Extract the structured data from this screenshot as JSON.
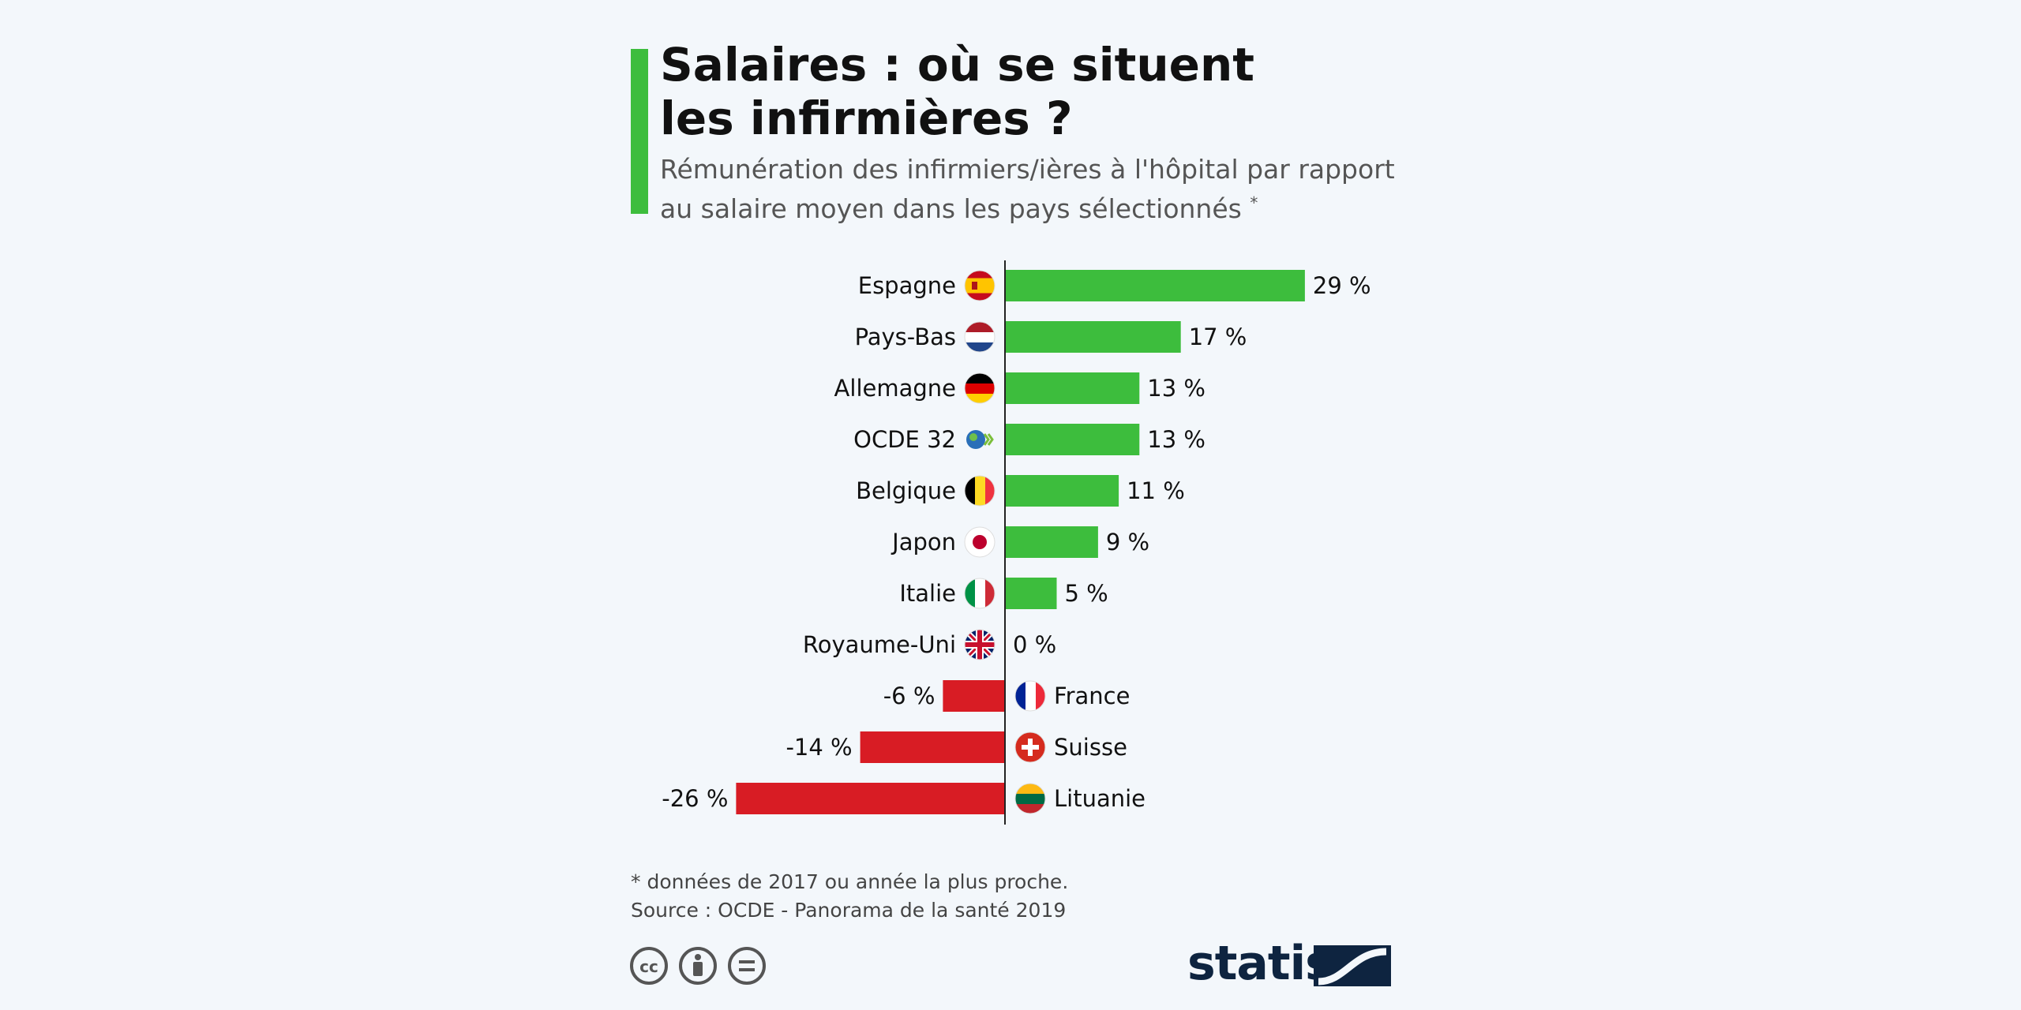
{
  "header": {
    "title_line1": "Salaires : où se situent",
    "title_line2": "les infirmières ?",
    "subtitle_line1": "Rémunération des infirmiers/ières à l'hôpital par rapport",
    "subtitle_line2": "au salaire moyen dans les pays sélectionnés",
    "subtitle_mark": "*"
  },
  "footer": {
    "note": "* données de 2017 ou année la plus proche.",
    "source": "Source : OCDE - Panorama de la santé 2019",
    "brand": "statista"
  },
  "colors": {
    "positive": "#3dbd3d",
    "negative": "#d81c24",
    "accent": "#3dbd3d",
    "brand": "#0e2440"
  },
  "chart_data": {
    "type": "bar",
    "orientation": "horizontal",
    "unit": "%",
    "title": "Salaires : où se situent les infirmières ?",
    "categories": [
      "Espagne",
      "Pays-Bas",
      "Allemagne",
      "OCDE 32",
      "Belgique",
      "Japon",
      "Italie",
      "Royaume-Uni",
      "France",
      "Suisse",
      "Lituanie"
    ],
    "values": [
      29,
      17,
      13,
      13,
      11,
      9,
      5,
      0,
      -6,
      -14,
      -26
    ],
    "labels": [
      "29 %",
      "17 %",
      "13 %",
      "13 %",
      "11 %",
      "9 %",
      "5 %",
      "0 %",
      "-6 %",
      "-14 %",
      "-26 %"
    ],
    "flags": [
      "spain-flag-icon",
      "netherlands-flag-icon",
      "germany-flag-icon",
      "oecd-icon",
      "belgium-flag-icon",
      "japan-flag-icon",
      "italy-flag-icon",
      "uk-flag-icon",
      "france-flag-icon",
      "switzerland-flag-icon",
      "lithuania-flag-icon"
    ],
    "xlim": [
      -26,
      29
    ],
    "grid": false
  }
}
